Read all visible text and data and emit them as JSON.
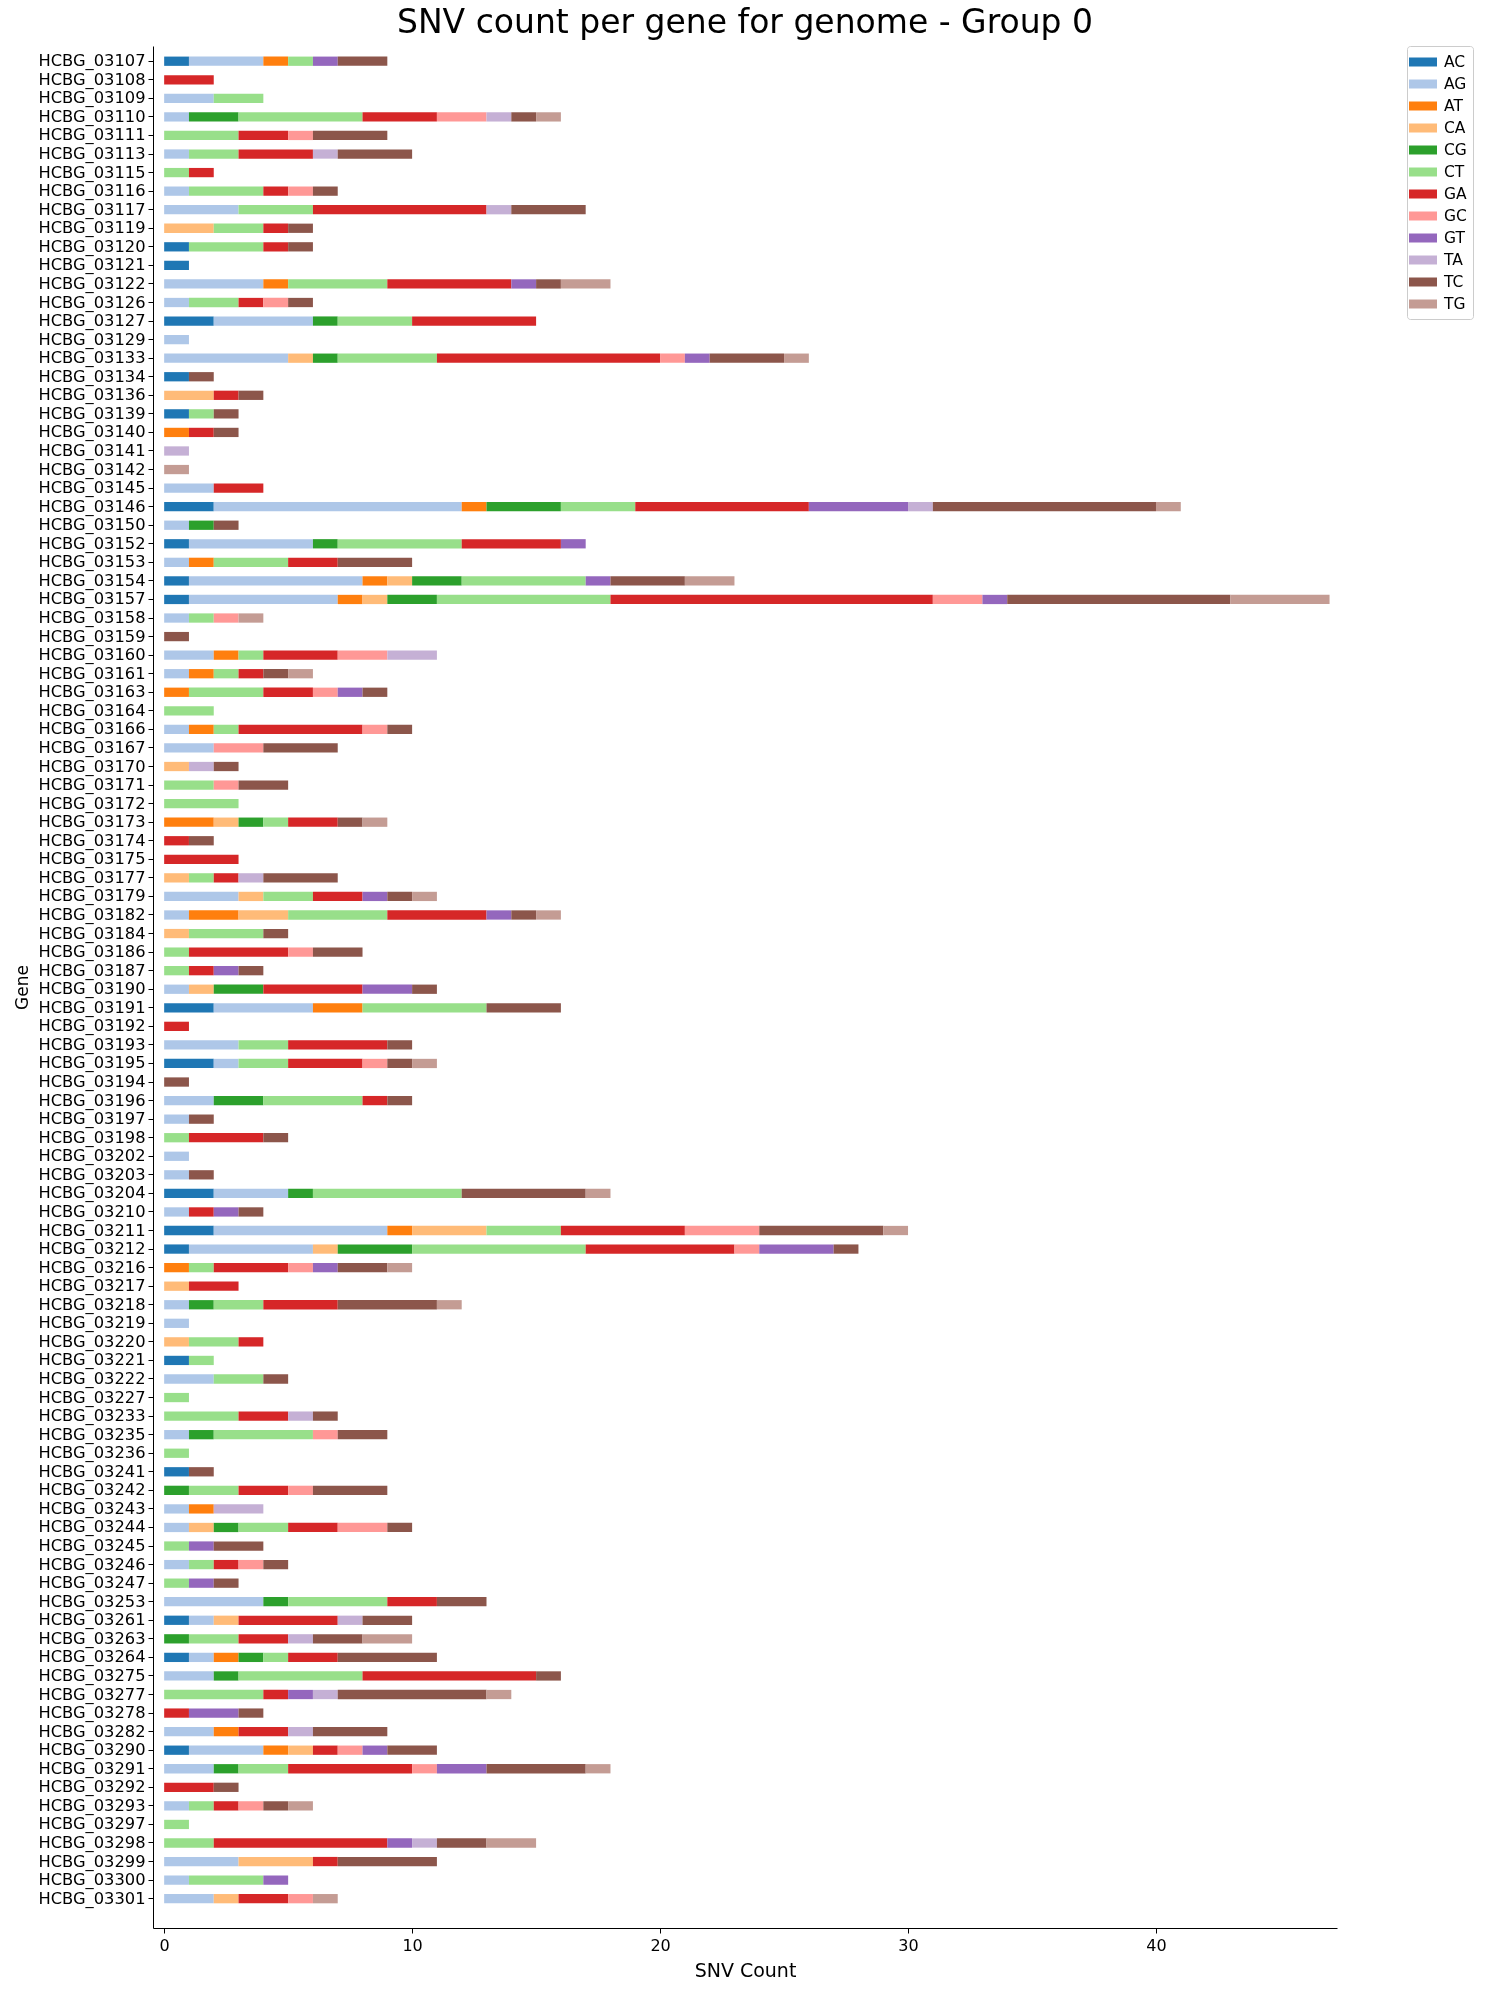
{
  "chart_data": {
    "type": "bar",
    "orientation": "horizontal",
    "stacked": true,
    "title": "SNV count per gene for genome - Group 0",
    "xlabel": "SNV Count",
    "ylabel": "Gene",
    "legend": "top right",
    "xlim": [
      -0.45,
      47.3
    ],
    "xticks": [
      0,
      10,
      20,
      30,
      40
    ],
    "categories": [
      "HCBG_03107",
      "HCBG_03108",
      "HCBG_03109",
      "HCBG_03110",
      "HCBG_03111",
      "HCBG_03113",
      "HCBG_03115",
      "HCBG_03116",
      "HCBG_03117",
      "HCBG_03119",
      "HCBG_03120",
      "HCBG_03121",
      "HCBG_03122",
      "HCBG_03126",
      "HCBG_03127",
      "HCBG_03129",
      "HCBG_03133",
      "HCBG_03134",
      "HCBG_03136",
      "HCBG_03139",
      "HCBG_03140",
      "HCBG_03141",
      "HCBG_03142",
      "HCBG_03145",
      "HCBG_03146",
      "HCBG_03150",
      "HCBG_03152",
      "HCBG_03153",
      "HCBG_03154",
      "HCBG_03157",
      "HCBG_03158",
      "HCBG_03159",
      "HCBG_03160",
      "HCBG_03161",
      "HCBG_03163",
      "HCBG_03164",
      "HCBG_03166",
      "HCBG_03167",
      "HCBG_03170",
      "HCBG_03171",
      "HCBG_03172",
      "HCBG_03173",
      "HCBG_03174",
      "HCBG_03175",
      "HCBG_03177",
      "HCBG_03179",
      "HCBG_03182",
      "HCBG_03184",
      "HCBG_03186",
      "HCBG_03187",
      "HCBG_03190",
      "HCBG_03191",
      "HCBG_03192",
      "HCBG_03193",
      "HCBG_03195",
      "HCBG_03194",
      "HCBG_03196",
      "HCBG_03197",
      "HCBG_03198",
      "HCBG_03202",
      "HCBG_03203",
      "HCBG_03204",
      "HCBG_03210",
      "HCBG_03211",
      "HCBG_03212",
      "HCBG_03216",
      "HCBG_03217",
      "HCBG_03218",
      "HCBG_03219",
      "HCBG_03220",
      "HCBG_03221",
      "HCBG_03222",
      "HCBG_03227",
      "HCBG_03233",
      "HCBG_03235",
      "HCBG_03236",
      "HCBG_03241",
      "HCBG_03242",
      "HCBG_03243",
      "HCBG_03244",
      "HCBG_03245",
      "HCBG_03246",
      "HCBG_03247",
      "HCBG_03253",
      "HCBG_03261",
      "HCBG_03263",
      "HCBG_03264",
      "HCBG_03275",
      "HCBG_03277",
      "HCBG_03278",
      "HCBG_03282",
      "HCBG_03290",
      "HCBG_03291",
      "HCBG_03292",
      "HCBG_03293",
      "HCBG_03297",
      "HCBG_03298",
      "HCBG_03299",
      "HCBG_03300",
      "HCBG_03301"
    ],
    "series": [
      {
        "name": "AC",
        "color": "#1f77b4",
        "values": [
          1,
          null,
          null,
          null,
          null,
          null,
          null,
          null,
          null,
          null,
          1,
          1,
          null,
          null,
          2,
          null,
          null,
          1,
          null,
          1,
          null,
          null,
          null,
          null,
          2,
          null,
          1,
          null,
          1,
          1,
          null,
          null,
          null,
          null,
          null,
          null,
          null,
          null,
          null,
          null,
          null,
          null,
          null,
          null,
          null,
          null,
          null,
          null,
          null,
          null,
          null,
          2,
          null,
          null,
          2,
          null,
          null,
          null,
          null,
          null,
          null,
          2,
          null,
          2,
          1,
          null,
          null,
          null,
          null,
          null,
          1,
          null,
          null,
          null,
          null,
          null,
          1,
          null,
          null,
          null,
          null,
          null,
          null,
          null,
          1,
          null,
          1,
          null,
          null,
          null,
          null,
          1,
          null,
          null,
          null,
          null,
          null,
          null,
          null,
          null
        ]
      },
      {
        "name": "AG",
        "color": "#aec7e8",
        "values": [
          3,
          null,
          2,
          1,
          null,
          1,
          null,
          1,
          3,
          null,
          null,
          null,
          4,
          1,
          4,
          1,
          5,
          null,
          null,
          null,
          null,
          null,
          null,
          2,
          10,
          1,
          5,
          1,
          7,
          6,
          1,
          null,
          2,
          1,
          null,
          null,
          1,
          2,
          null,
          null,
          null,
          null,
          null,
          null,
          null,
          3,
          1,
          null,
          null,
          null,
          1,
          4,
          null,
          3,
          1,
          null,
          2,
          1,
          null,
          1,
          1,
          3,
          1,
          7,
          5,
          null,
          null,
          1,
          1,
          null,
          null,
          2,
          null,
          null,
          1,
          null,
          null,
          null,
          1,
          1,
          null,
          1,
          null,
          4,
          1,
          null,
          1,
          2,
          null,
          null,
          2,
          3,
          2,
          null,
          1,
          null,
          null,
          3,
          1,
          2
        ]
      },
      {
        "name": "AT",
        "color": "#ff7f0e",
        "values": [
          1,
          null,
          null,
          null,
          null,
          null,
          null,
          null,
          null,
          null,
          null,
          null,
          1,
          null,
          null,
          null,
          null,
          null,
          null,
          null,
          1,
          null,
          null,
          null,
          1,
          null,
          null,
          1,
          1,
          1,
          null,
          null,
          1,
          1,
          1,
          null,
          1,
          null,
          null,
          null,
          null,
          2,
          null,
          null,
          null,
          null,
          2,
          null,
          null,
          null,
          null,
          2,
          null,
          null,
          null,
          null,
          null,
          null,
          null,
          null,
          null,
          null,
          null,
          1,
          null,
          1,
          null,
          null,
          null,
          null,
          null,
          null,
          null,
          null,
          null,
          null,
          null,
          null,
          1,
          null,
          null,
          null,
          null,
          null,
          null,
          null,
          1,
          null,
          null,
          null,
          1,
          1,
          null,
          null,
          null,
          null,
          null,
          null,
          null,
          null
        ]
      },
      {
        "name": "CA",
        "color": "#ffbb78",
        "values": [
          null,
          null,
          null,
          null,
          null,
          null,
          null,
          null,
          null,
          2,
          null,
          null,
          null,
          null,
          null,
          null,
          1,
          null,
          2,
          null,
          null,
          null,
          null,
          null,
          null,
          null,
          null,
          null,
          1,
          1,
          null,
          null,
          null,
          null,
          null,
          null,
          null,
          null,
          1,
          null,
          null,
          1,
          null,
          null,
          1,
          1,
          2,
          1,
          null,
          null,
          1,
          null,
          null,
          null,
          null,
          null,
          null,
          null,
          null,
          null,
          null,
          null,
          null,
          3,
          1,
          null,
          1,
          null,
          null,
          1,
          null,
          null,
          null,
          null,
          null,
          null,
          null,
          null,
          null,
          1,
          null,
          null,
          null,
          null,
          1,
          null,
          null,
          null,
          null,
          null,
          null,
          1,
          null,
          null,
          null,
          null,
          null,
          3,
          null,
          1
        ]
      },
      {
        "name": "CG",
        "color": "#2ca02c",
        "values": [
          null,
          null,
          null,
          2,
          null,
          null,
          null,
          null,
          null,
          null,
          null,
          null,
          null,
          null,
          1,
          null,
          1,
          null,
          null,
          null,
          null,
          null,
          null,
          null,
          3,
          1,
          1,
          null,
          2,
          2,
          null,
          null,
          null,
          null,
          null,
          null,
          null,
          null,
          null,
          null,
          null,
          1,
          null,
          null,
          null,
          null,
          null,
          null,
          null,
          null,
          2,
          null,
          null,
          null,
          null,
          null,
          2,
          null,
          null,
          null,
          null,
          1,
          null,
          null,
          3,
          null,
          null,
          1,
          null,
          null,
          null,
          null,
          null,
          null,
          1,
          null,
          null,
          1,
          null,
          1,
          null,
          null,
          null,
          1,
          null,
          1,
          1,
          1,
          null,
          null,
          null,
          null,
          1,
          null,
          null,
          null,
          null,
          null,
          null,
          null
        ]
      },
      {
        "name": "CT",
        "color": "#98df8a",
        "values": [
          1,
          null,
          2,
          5,
          3,
          2,
          1,
          3,
          3,
          2,
          3,
          null,
          4,
          2,
          3,
          null,
          4,
          null,
          null,
          1,
          null,
          null,
          null,
          null,
          3,
          null,
          5,
          3,
          5,
          7,
          1,
          null,
          1,
          1,
          3,
          2,
          1,
          null,
          null,
          2,
          3,
          1,
          null,
          null,
          1,
          2,
          4,
          3,
          1,
          1,
          null,
          5,
          null,
          2,
          2,
          null,
          4,
          null,
          1,
          null,
          null,
          6,
          null,
          3,
          7,
          1,
          null,
          2,
          null,
          2,
          1,
          2,
          1,
          3,
          4,
          1,
          null,
          2,
          null,
          2,
          1,
          1,
          1,
          4,
          null,
          2,
          1,
          5,
          4,
          null,
          null,
          null,
          2,
          null,
          1,
          1,
          2,
          null,
          3,
          null
        ]
      },
      {
        "name": "GA",
        "color": "#d62728",
        "values": [
          null,
          2,
          null,
          3,
          2,
          3,
          1,
          1,
          7,
          1,
          1,
          null,
          5,
          1,
          5,
          null,
          9,
          null,
          1,
          null,
          1,
          null,
          null,
          2,
          7,
          null,
          4,
          2,
          null,
          13,
          null,
          null,
          3,
          1,
          2,
          null,
          5,
          null,
          null,
          null,
          null,
          2,
          1,
          3,
          1,
          2,
          4,
          null,
          4,
          1,
          4,
          null,
          1,
          4,
          3,
          null,
          1,
          null,
          3,
          null,
          null,
          null,
          1,
          5,
          6,
          3,
          2,
          3,
          null,
          1,
          null,
          null,
          null,
          2,
          null,
          null,
          null,
          2,
          null,
          2,
          null,
          1,
          null,
          2,
          4,
          2,
          2,
          7,
          1,
          1,
          2,
          1,
          5,
          2,
          1,
          null,
          7,
          1,
          null,
          2
        ]
      },
      {
        "name": "GC",
        "color": "#ff9896",
        "values": [
          null,
          null,
          null,
          2,
          1,
          null,
          null,
          1,
          null,
          null,
          null,
          null,
          null,
          1,
          null,
          null,
          1,
          null,
          null,
          null,
          null,
          null,
          null,
          null,
          null,
          null,
          null,
          null,
          null,
          2,
          1,
          null,
          2,
          null,
          1,
          null,
          1,
          2,
          null,
          1,
          null,
          null,
          null,
          null,
          null,
          null,
          null,
          null,
          1,
          null,
          null,
          null,
          null,
          null,
          1,
          null,
          null,
          null,
          null,
          null,
          null,
          null,
          null,
          3,
          1,
          1,
          null,
          null,
          null,
          null,
          null,
          null,
          null,
          null,
          1,
          null,
          null,
          1,
          null,
          2,
          null,
          1,
          null,
          null,
          null,
          null,
          null,
          null,
          null,
          null,
          null,
          1,
          1,
          null,
          1,
          null,
          null,
          null,
          null,
          1
        ]
      },
      {
        "name": "GT",
        "color": "#9467bd",
        "values": [
          1,
          null,
          null,
          null,
          null,
          null,
          null,
          null,
          null,
          null,
          null,
          null,
          1,
          null,
          null,
          null,
          1,
          null,
          null,
          null,
          null,
          null,
          null,
          null,
          4,
          null,
          1,
          null,
          1,
          1,
          null,
          null,
          null,
          null,
          1,
          null,
          null,
          null,
          null,
          null,
          null,
          null,
          null,
          null,
          null,
          1,
          1,
          null,
          null,
          1,
          2,
          null,
          null,
          null,
          null,
          null,
          null,
          null,
          null,
          null,
          null,
          null,
          1,
          null,
          3,
          1,
          null,
          null,
          null,
          null,
          null,
          null,
          null,
          null,
          null,
          null,
          null,
          null,
          null,
          null,
          1,
          null,
          1,
          null,
          null,
          null,
          null,
          null,
          1,
          2,
          null,
          1,
          2,
          null,
          null,
          null,
          1,
          null,
          1,
          null
        ]
      },
      {
        "name": "TA",
        "color": "#c5b0d5",
        "values": [
          null,
          null,
          null,
          1,
          null,
          1,
          null,
          null,
          1,
          null,
          null,
          null,
          null,
          null,
          null,
          null,
          null,
          null,
          null,
          null,
          null,
          1,
          null,
          null,
          1,
          null,
          null,
          null,
          null,
          null,
          null,
          null,
          2,
          null,
          null,
          null,
          null,
          null,
          1,
          null,
          null,
          null,
          null,
          null,
          1,
          null,
          null,
          null,
          null,
          null,
          null,
          null,
          null,
          null,
          null,
          null,
          null,
          null,
          null,
          null,
          null,
          null,
          null,
          null,
          null,
          null,
          null,
          null,
          null,
          null,
          null,
          null,
          null,
          1,
          null,
          null,
          null,
          null,
          2,
          null,
          null,
          null,
          null,
          null,
          1,
          1,
          null,
          null,
          1,
          null,
          1,
          null,
          null,
          null,
          null,
          null,
          1,
          null,
          null,
          null
        ]
      },
      {
        "name": "TC",
        "color": "#8c564b",
        "values": [
          2,
          null,
          null,
          1,
          3,
          3,
          null,
          1,
          3,
          1,
          1,
          null,
          1,
          1,
          null,
          null,
          3,
          1,
          1,
          1,
          1,
          null,
          null,
          null,
          9,
          1,
          null,
          3,
          3,
          9,
          null,
          1,
          null,
          1,
          1,
          null,
          1,
          3,
          1,
          2,
          null,
          1,
          1,
          null,
          3,
          1,
          1,
          1,
          2,
          1,
          1,
          3,
          null,
          1,
          1,
          1,
          1,
          1,
          1,
          null,
          1,
          5,
          1,
          5,
          1,
          2,
          null,
          4,
          null,
          null,
          null,
          1,
          null,
          1,
          2,
          null,
          1,
          3,
          null,
          1,
          2,
          1,
          1,
          2,
          2,
          2,
          4,
          1,
          6,
          1,
          3,
          2,
          4,
          1,
          1,
          null,
          2,
          4,
          null,
          null
        ]
      },
      {
        "name": "TG",
        "color": "#c49c94",
        "values": [
          null,
          null,
          null,
          1,
          null,
          null,
          null,
          null,
          null,
          null,
          null,
          null,
          2,
          null,
          null,
          null,
          1,
          null,
          null,
          null,
          null,
          null,
          1,
          null,
          1,
          null,
          null,
          null,
          2,
          4,
          1,
          null,
          null,
          1,
          null,
          null,
          null,
          null,
          null,
          null,
          null,
          1,
          null,
          null,
          null,
          1,
          1,
          null,
          null,
          null,
          null,
          null,
          null,
          null,
          1,
          null,
          null,
          null,
          null,
          null,
          null,
          1,
          null,
          1,
          null,
          1,
          null,
          1,
          null,
          null,
          null,
          null,
          null,
          null,
          null,
          null,
          null,
          null,
          null,
          null,
          null,
          null,
          null,
          null,
          null,
          2,
          null,
          null,
          1,
          null,
          null,
          null,
          1,
          null,
          1,
          null,
          2,
          null,
          null,
          1
        ]
      }
    ]
  }
}
